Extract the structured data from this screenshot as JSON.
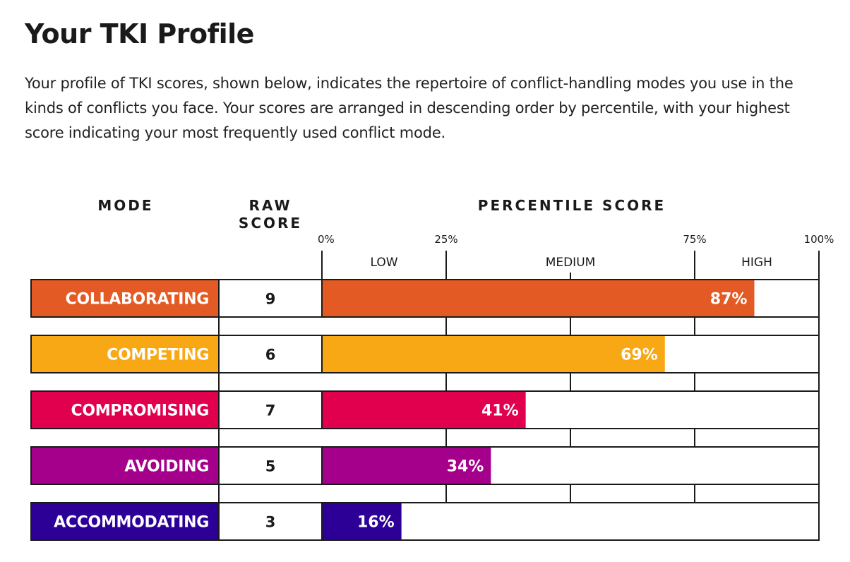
{
  "page": {
    "title": "Your TKI Profile",
    "intro": "Your profile of TKI scores, shown below, indicates the repertoire of conflict-handling modes you use in the kinds of conflicts you face. Your scores are arranged in descending order by percentile, with your highest score indicating your most frequently used conflict mode."
  },
  "chart_data": {
    "type": "bar",
    "orientation": "horizontal",
    "headers": {
      "mode": "MODE",
      "raw_score": [
        "RAW",
        "SCORE"
      ],
      "percentile": "PERCENTILE SCORE"
    },
    "xlim": [
      0,
      100
    ],
    "ticks": [
      {
        "value": 0,
        "label": "0%"
      },
      {
        "value": 25,
        "label": "25%"
      },
      {
        "value": 75,
        "label": "75%"
      },
      {
        "value": 100,
        "label": "100%"
      }
    ],
    "bands": [
      {
        "label": "LOW",
        "from": 0,
        "to": 25
      },
      {
        "label": "MEDIUM",
        "from": 25,
        "to": 75
      },
      {
        "label": "HIGH",
        "from": 75,
        "to": 100
      }
    ],
    "grid_values": [
      25,
      50,
      75
    ],
    "rows": [
      {
        "mode": "COLLABORATING",
        "raw": "9",
        "percentile": 87,
        "label": "87%",
        "color": "#e35a24"
      },
      {
        "mode": "COMPETING",
        "raw": "6",
        "percentile": 69,
        "label": "69%",
        "color": "#f8a814"
      },
      {
        "mode": "COMPROMISING",
        "raw": "7",
        "percentile": 41,
        "label": "41%",
        "color": "#e0004d"
      },
      {
        "mode": "AVOIDING",
        "raw": "5",
        "percentile": 34,
        "label": "34%",
        "color": "#a4008c"
      },
      {
        "mode": "ACCOMMODATING",
        "raw": "3",
        "percentile": 16,
        "label": "16%",
        "color": "#2c0096"
      }
    ]
  }
}
